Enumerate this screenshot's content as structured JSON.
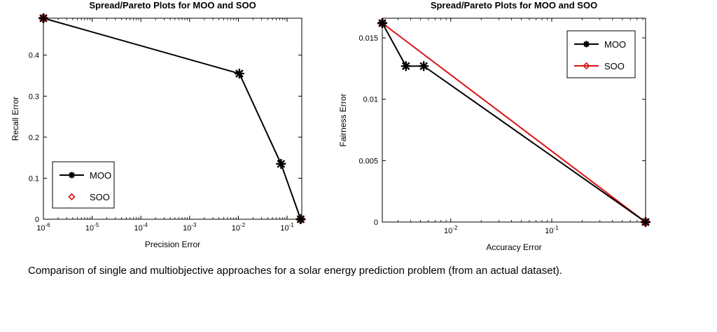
{
  "caption": "Comparison of single and multiobjective approaches for a solar energy prediction problem (from an actual dataset).",
  "colors": {
    "moo": "#000000",
    "soo": "#dd1111"
  },
  "chart_data": [
    {
      "type": "line",
      "title": "Spread/Pareto Plots for MOO and SOO",
      "xlabel": "Precision Error",
      "ylabel": "Recall Error",
      "xscale": "log",
      "xlim": [
        1e-06,
        0.2
      ],
      "ylim": [
        0,
        0.49
      ],
      "xticks": [
        {
          "value": 1e-06,
          "base": "10",
          "exp": "-6"
        },
        {
          "value": 1e-05,
          "base": "10",
          "exp": "-5"
        },
        {
          "value": 0.0001,
          "base": "10",
          "exp": "-4"
        },
        {
          "value": 0.001,
          "base": "10",
          "exp": "-3"
        },
        {
          "value": 0.01,
          "base": "10",
          "exp": "-2"
        },
        {
          "value": 0.1,
          "base": "10",
          "exp": "-1"
        }
      ],
      "yticks": [
        {
          "value": 0,
          "label": "0"
        },
        {
          "value": 0.1,
          "label": "0.1"
        },
        {
          "value": 0.2,
          "label": "0.2"
        },
        {
          "value": 0.3,
          "label": "0.3"
        },
        {
          "value": 0.4,
          "label": "0.4"
        }
      ],
      "legend_position": "bottom-left",
      "series": [
        {
          "name": "MOO",
          "marker": "star",
          "line": true,
          "x": [
            1e-06,
            0.0105,
            0.075,
            0.19
          ],
          "y": [
            0.49,
            0.355,
            0.135,
            0.0
          ]
        },
        {
          "name": "SOO",
          "marker": "diamond",
          "line": false,
          "x": [
            1e-06,
            0.19
          ],
          "y": [
            0.49,
            0.0
          ]
        }
      ]
    },
    {
      "type": "line",
      "title": "Spread/Pareto Plots for MOO and SOO",
      "xlabel": "Accuracy Error",
      "ylabel": "Fairness Error",
      "xscale": "log",
      "xlim": [
        0.0021,
        0.85
      ],
      "ylim": [
        0,
        0.0166
      ],
      "xticks": [
        {
          "value": 0.01,
          "base": "10",
          "exp": "-2"
        },
        {
          "value": 0.1,
          "base": "10",
          "exp": "-1"
        }
      ],
      "yticks": [
        {
          "value": 0,
          "label": "0"
        },
        {
          "value": 0.005,
          "label": "0.005"
        },
        {
          "value": 0.01,
          "label": "0.01"
        },
        {
          "value": 0.015,
          "label": "0.015"
        }
      ],
      "legend_position": "top-right",
      "series": [
        {
          "name": "MOO",
          "marker": "star",
          "line": true,
          "x": [
            0.0021,
            0.0036,
            0.0054,
            0.85
          ],
          "y": [
            0.0162,
            0.0127,
            0.0127,
            0.0
          ]
        },
        {
          "name": "SOO",
          "marker": "diamond",
          "line": true,
          "x": [
            0.0021,
            0.85
          ],
          "y": [
            0.0162,
            0.0
          ]
        }
      ]
    }
  ]
}
